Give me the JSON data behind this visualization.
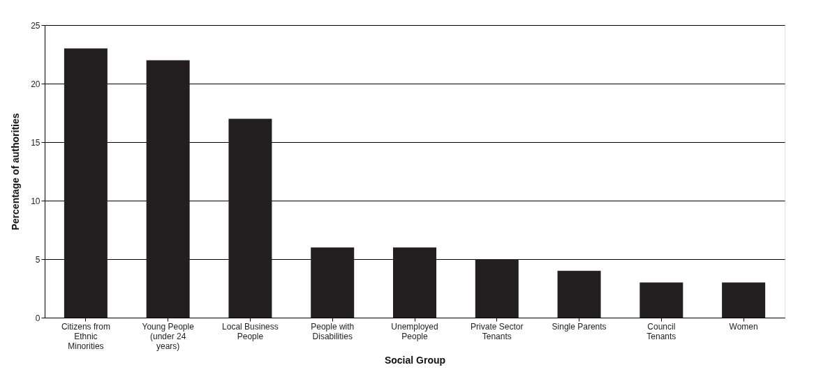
{
  "chart_data": {
    "type": "bar",
    "xlabel": "Social Group",
    "ylabel": "Percentage of authorities",
    "categories": [
      "Citizens from Ethnic Minorities",
      "Young People (under 24 years)",
      "Local Business People",
      "People with Disabilities",
      "Unemployed People",
      "Private Sector Tenants",
      "Single Parents",
      "Council Tenants",
      "Women"
    ],
    "values": [
      23,
      22,
      17,
      6,
      6,
      5,
      4,
      3,
      3
    ],
    "color": "#231f20",
    "ylim": [
      0,
      25
    ],
    "yticks": [
      0,
      5,
      10,
      15,
      20,
      25
    ],
    "grid": "y"
  }
}
